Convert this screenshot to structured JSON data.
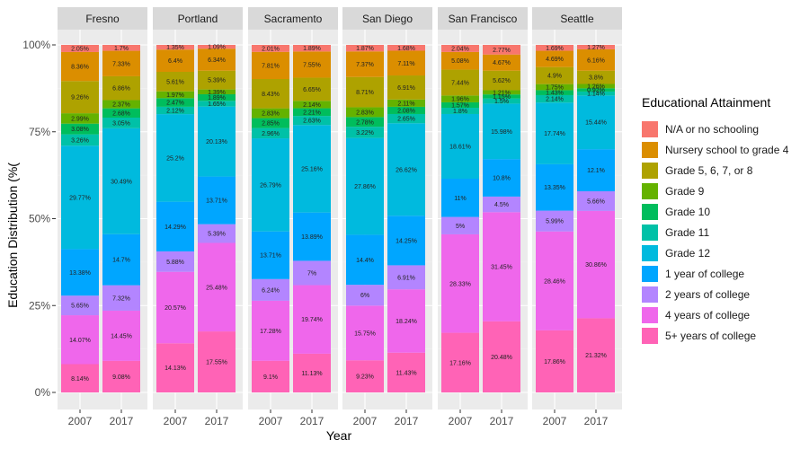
{
  "chart_data": {
    "type": "bar",
    "stacked": true,
    "facets": [
      "Fresno",
      "Portland",
      "Sacramento",
      "San Diego",
      "San Francisco",
      "Seattle"
    ],
    "categories": [
      "2007",
      "2017"
    ],
    "xlabel": "Year",
    "ylabel": "Education Distribution (%(",
    "ylim": [
      0,
      1
    ],
    "yticks": [
      "0%",
      "25%",
      "50%",
      "75%",
      "100%"
    ],
    "legend_title": "Educational Attainment",
    "legend_position": "right",
    "series": [
      {
        "name": "N/A or no schooling",
        "color": "#F8766D"
      },
      {
        "name": "Nursery school to grade 4",
        "color": "#DB8E00"
      },
      {
        "name": "Grade 5, 6, 7, or 8",
        "color": "#AEA200"
      },
      {
        "name": "Grade 9",
        "color": "#64B200"
      },
      {
        "name": "Grade 10",
        "color": "#00BD5C"
      },
      {
        "name": "Grade 11",
        "color": "#00C1A7"
      },
      {
        "name": "Grade 12",
        "color": "#00BADE"
      },
      {
        "name": "1 year of college",
        "color": "#00A6FF"
      },
      {
        "name": "2 years of college",
        "color": "#B385FF"
      },
      {
        "name": "4 years of college",
        "color": "#EF67EB"
      },
      {
        "name": "5+ years of college",
        "color": "#FF63B6"
      }
    ],
    "values": {
      "Fresno": {
        "2007": [
          2.05,
          8.36,
          9.26,
          2.99,
          3.08,
          3.26,
          29.77,
          13.38,
          5.65,
          14.07,
          8.14
        ],
        "2017": [
          1.7,
          7.33,
          6.86,
          2.37,
          2.68,
          3.05,
          30.49,
          14.7,
          7.32,
          14.45,
          9.08
        ]
      },
      "Portland": {
        "2007": [
          1.35,
          6.4,
          5.61,
          1.97,
          2.47,
          2.12,
          25.2,
          14.29,
          5.88,
          20.57,
          14.13
        ],
        "2017": [
          1.09,
          6.34,
          5.39,
          1.39,
          1.89,
          1.65,
          20.13,
          13.71,
          5.39,
          25.48,
          17.55
        ]
      },
      "Sacramento": {
        "2007": [
          2.01,
          7.81,
          8.43,
          2.83,
          2.85,
          2.96,
          26.79,
          13.71,
          6.24,
          17.28,
          9.1
        ],
        "2017": [
          1.89,
          7.55,
          6.65,
          2.14,
          2.21,
          2.63,
          25.16,
          13.89,
          7,
          19.74,
          11.13
        ]
      },
      "San Diego": {
        "2007": [
          1.87,
          7.37,
          8.71,
          2.83,
          2.78,
          3.22,
          27.86,
          14.4,
          6,
          15.75,
          9.23
        ],
        "2017": [
          1.68,
          7.11,
          6.91,
          2.11,
          2.08,
          2.65,
          26.62,
          14.25,
          6.91,
          18.24,
          11.43
        ]
      },
      "San Francisco": {
        "2007": [
          2.04,
          5.08,
          7.44,
          1.96,
          1.57,
          1.8,
          18.61,
          11,
          5,
          28.33,
          17.16
        ],
        "2017": [
          2.77,
          4.67,
          5.62,
          1.21,
          1.15,
          1.5,
          15.98,
          10.8,
          4.5,
          31.45,
          20.48
        ]
      },
      "Seattle": {
        "2007": [
          1.69,
          4.69,
          4.9,
          1.75,
          1.43,
          2.14,
          17.74,
          13.35,
          5.99,
          28.46,
          17.86
        ],
        "2017": [
          1.27,
          6.16,
          3.8,
          1.26,
          0.92,
          1.14,
          15.44,
          12.1,
          5.66,
          30.86,
          21.32
        ]
      }
    },
    "labels": {
      "Fresno": {
        "2007": [
          "2.05%",
          "8.36%",
          "9.26%",
          "2.99%",
          "3.08%",
          "3.26%",
          "29.77%",
          "13.38%",
          "5.65%",
          "14.07%",
          "8.14%"
        ],
        "2017": [
          "1.7%",
          "7.33%",
          "6.86%",
          "2.37%",
          "2.68%",
          "3.05%",
          "30.49%",
          "14.7%",
          "7.32%",
          "14.45%",
          "9.08%"
        ]
      },
      "Portland": {
        "2007": [
          "1.35%",
          "6.4%",
          "5.61%",
          "1.97%",
          "2.47%",
          "2.12%",
          "25.2%",
          "14.29%",
          "5.88%",
          "20.57%",
          "14.13%"
        ],
        "2017": [
          "1.09%",
          "6.34%",
          "5.39%",
          "1.39%",
          "1.89%",
          "1.65%",
          "20.13%",
          "13.71%",
          "5.39%",
          "25.48%",
          "17.55%"
        ]
      },
      "Sacramento": {
        "2007": [
          "2.01%",
          "7.81%",
          "8.43%",
          "2.83%",
          "2.85%",
          "2.96%",
          "26.79%",
          "13.71%",
          "6.24%",
          "17.28%",
          "9.1%"
        ],
        "2017": [
          "1.89%",
          "7.55%",
          "6.65%",
          "2.14%",
          "2.21%",
          "2.63%",
          "25.16%",
          "13.89%",
          "7%",
          "19.74%",
          "11.13%"
        ]
      },
      "San Diego": {
        "2007": [
          "1.87%",
          "7.37%",
          "8.71%",
          "2.83%",
          "2.78%",
          "3.22%",
          "27.86%",
          "14.4%",
          "6%",
          "15.75%",
          "9.23%"
        ],
        "2017": [
          "1.68%",
          "7.11%",
          "6.91%",
          "2.11%",
          "2.08%",
          "2.65%",
          "26.62%",
          "14.25%",
          "6.91%",
          "18.24%",
          "11.43%"
        ]
      },
      "San Francisco": {
        "2007": [
          "2.04%",
          "5.08%",
          "7.44%",
          "1.96%",
          "1.57%",
          "1.8%",
          "18.61%",
          "11%",
          "5%",
          "28.33%",
          "17.16%"
        ],
        "2017": [
          "2.77%",
          "4.67%",
          "5.62%",
          "1.21%",
          "1.15%",
          "1.5%",
          "15.98%",
          "10.8%",
          "4.5%",
          "31.45%",
          "20.48%"
        ]
      },
      "Seattle": {
        "2007": [
          "1.69%",
          "4.69%",
          "4.9%",
          "1.75%",
          "1.43%",
          "2.14%",
          "17.74%",
          "13.35%",
          "5.99%",
          "28.46%",
          "17.86%"
        ],
        "2017": [
          "1.27%",
          "6.16%",
          "3.8%",
          "1.26%",
          "0.92%",
          "1.14%",
          "15.44%",
          "12.1%",
          "5.66%",
          "30.86%",
          "21.32%"
        ]
      }
    }
  }
}
